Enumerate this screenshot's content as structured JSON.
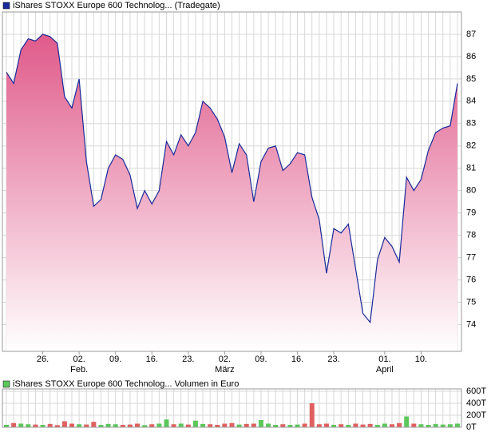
{
  "chart_data": [
    {
      "type": "area",
      "categories": [
        null,
        null,
        null,
        null,
        null,
        "26.",
        null,
        null,
        null,
        null,
        "02.",
        null,
        null,
        null,
        null,
        "09.",
        null,
        null,
        null,
        null,
        "16.",
        null,
        null,
        null,
        null,
        "23.",
        null,
        null,
        null,
        null,
        "02.",
        null,
        null,
        null,
        null,
        "09.",
        null,
        null,
        null,
        null,
        "16.",
        null,
        null,
        null,
        null,
        "23.",
        null,
        null,
        null,
        null,
        null,
        null,
        "01.",
        null,
        null,
        null,
        null,
        "10.",
        null,
        null,
        null,
        null,
        null
      ],
      "months": [
        null,
        null,
        null,
        null,
        null,
        null,
        null,
        null,
        null,
        null,
        "Feb.",
        null,
        null,
        null,
        null,
        null,
        null,
        null,
        null,
        null,
        null,
        null,
        null,
        null,
        null,
        null,
        null,
        null,
        null,
        null,
        "März",
        null,
        null,
        null,
        null,
        null,
        null,
        null,
        null,
        null,
        null,
        null,
        null,
        null,
        null,
        null,
        null,
        null,
        null,
        null,
        null,
        null,
        "April",
        null,
        null,
        null,
        null,
        null,
        null,
        null,
        null,
        null,
        null
      ],
      "series": [
        {
          "name": "iShares STOXX Europe 600 Technolog... (Tradegate)",
          "color": "#1a2a9a",
          "values": [
            85.3,
            84.8,
            86.3,
            86.8,
            86.7,
            87.0,
            86.9,
            86.6,
            84.2,
            83.7,
            85.0,
            81.3,
            79.3,
            79.6,
            81.0,
            81.6,
            81.4,
            80.7,
            79.2,
            80.0,
            79.4,
            80.0,
            82.2,
            81.6,
            82.5,
            82.0,
            82.6,
            84.0,
            83.7,
            83.2,
            82.4,
            80.8,
            82.1,
            81.6,
            79.5,
            81.3,
            81.9,
            82.0,
            80.9,
            81.2,
            81.7,
            81.6,
            79.7,
            78.7,
            76.3,
            78.3,
            78.1,
            78.5,
            76.5,
            74.5,
            74.1,
            76.9,
            77.9,
            77.5,
            76.8,
            80.6,
            80.0,
            80.5,
            81.8,
            82.6,
            82.8,
            82.9,
            84.8
          ]
        }
      ],
      "fill_color": "#e05a8a",
      "ylim": [
        72.8,
        88.0
      ],
      "yticks": [
        74,
        75,
        76,
        77,
        78,
        79,
        80,
        81,
        82,
        83,
        84,
        85,
        86,
        87
      ],
      "grid": true
    },
    {
      "type": "bar",
      "series": [
        {
          "name": "iShares STOXX Europe 600 Technolog... Volumen in Euro",
          "color": "#5cc85c",
          "values": [
            40,
            70,
            60,
            50,
            45,
            40,
            55,
            35,
            100,
            60,
            50,
            45,
            90,
            40,
            55,
            50,
            40,
            45,
            60,
            35,
            50,
            60,
            130,
            50,
            60,
            45,
            110,
            55,
            50,
            40,
            60,
            70,
            45,
            55,
            60,
            120,
            60,
            40,
            50,
            40,
            45,
            60,
            400,
            50,
            60,
            40,
            50,
            40,
            60,
            45,
            55,
            40,
            60,
            50,
            70,
            180,
            60,
            50,
            40,
            55,
            45,
            50,
            60
          ]
        }
      ],
      "up_color": "#5cc85c",
      "down_color": "#e06060",
      "ylim": [
        0,
        640
      ],
      "yticks": [
        {
          "value": 600,
          "label": "600T"
        },
        {
          "value": 400,
          "label": "400T"
        },
        {
          "value": 200,
          "label": "200T"
        },
        {
          "value": 0,
          "label": "0T"
        }
      ]
    }
  ]
}
